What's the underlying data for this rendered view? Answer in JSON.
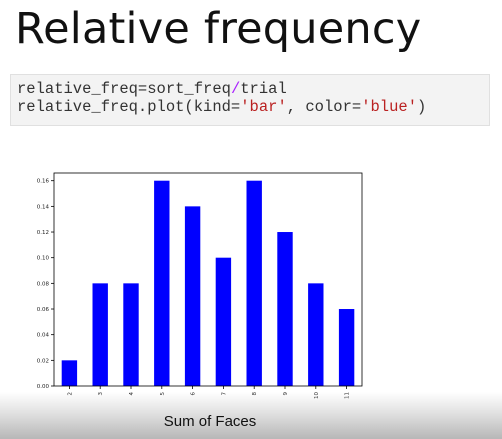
{
  "slide": {
    "title": "Relative frequency"
  },
  "code": {
    "line1": {
      "before": "relative_freq=sort_freq",
      "op": "/",
      "after": "trial"
    },
    "line2": {
      "before": "relative_freq.plot(kind=",
      "str1": "'bar'",
      "middle": ", color=",
      "str2": "'blue'",
      "after": ")"
    }
  },
  "colors": {
    "bar": "#0000ff",
    "code_op": "#aa22ff",
    "code_string": "#ba2121"
  },
  "chart_data": {
    "type": "bar",
    "categories": [
      "2",
      "3",
      "4",
      "5",
      "6",
      "7",
      "8",
      "9",
      "10",
      "11"
    ],
    "values": [
      0.02,
      0.08,
      0.08,
      0.16,
      0.14,
      0.1,
      0.16,
      0.12,
      0.08,
      0.06
    ],
    "yticks": [
      "0.00",
      "0.02",
      "0.04",
      "0.06",
      "0.08",
      "0.10",
      "0.12",
      "0.14",
      "0.16"
    ],
    "ylim": [
      0,
      0.166
    ],
    "title": "",
    "xlabel": "Sum of Faces",
    "ylabel": "",
    "bar_color": "blue"
  }
}
